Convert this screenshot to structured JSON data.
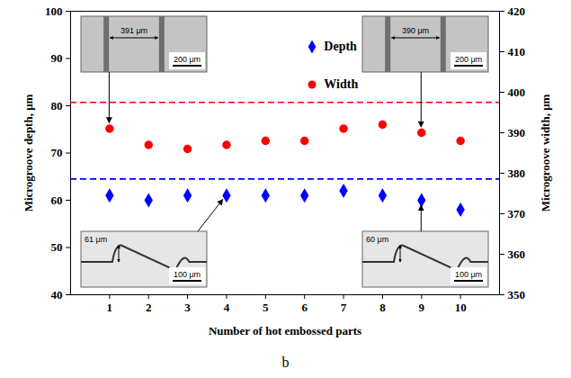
{
  "chart_data": {
    "type": "scatter",
    "caption": "b",
    "x_label": "Number of hot embossed parts",
    "y_label": "Microgroove depth, μm",
    "y2_label": "Microgroove width, μm",
    "x": [
      1,
      2,
      3,
      4,
      5,
      6,
      7,
      8,
      9,
      10
    ],
    "xlim": [
      0,
      11
    ],
    "xticks": [
      1,
      2,
      3,
      4,
      5,
      6,
      7,
      8,
      9,
      10
    ],
    "ylim": [
      40,
      100
    ],
    "yticks": [
      40,
      50,
      60,
      70,
      80,
      90,
      100
    ],
    "y2lim": [
      350,
      420
    ],
    "y2ticks": [
      350,
      360,
      370,
      380,
      390,
      400,
      410,
      420
    ],
    "series": [
      {
        "name": "Depth",
        "color": "#0000ff",
        "marker": "diamond",
        "values": [
          61,
          60,
          61,
          61,
          61,
          61,
          62,
          61,
          60,
          58
        ]
      },
      {
        "name": "Width",
        "color": "#ff0000",
        "marker": "circle",
        "axis": "y2",
        "values": [
          391,
          387,
          386,
          387,
          388,
          388,
          391,
          392,
          390,
          388
        ]
      }
    ],
    "reference_lines": [
      {
        "axis": "y",
        "value": 64.5,
        "color": "#0000ff",
        "line_style": "dashed"
      },
      {
        "axis": "y2",
        "value": 397.5,
        "color": "#ff0000",
        "line_style": "dashed"
      }
    ],
    "legend": "top",
    "insets": [
      {
        "labels": [
          "391 μm",
          "200 μm"
        ],
        "points_to": {
          "series": "Width",
          "x": 1
        }
      },
      {
        "labels": [
          "390 μm",
          "200 μm"
        ],
        "points_to": {
          "series": "Width",
          "x": 9
        }
      },
      {
        "labels": [
          "61 μm",
          "100 μm"
        ],
        "points_to": {
          "series": "Depth",
          "x": 4
        }
      },
      {
        "labels": [
          "60 μm",
          "100 μm"
        ],
        "points_to": {
          "series": "Depth",
          "x": 9
        }
      }
    ]
  }
}
